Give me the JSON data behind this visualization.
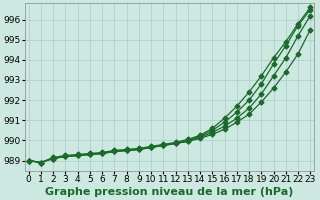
{
  "title": "Graphe pression niveau de la mer (hPa)",
  "xlabel": "Graphe pression niveau de la mer (hPa)",
  "ylabel": "",
  "background_color": "#cce8e0",
  "grid_color": "#aacccc",
  "line_color": "#1a6b2a",
  "ylim": [
    988.5,
    996.8
  ],
  "xlim": [
    -0.3,
    23.3
  ],
  "yticks": [
    989,
    990,
    991,
    992,
    993,
    994,
    995,
    996
  ],
  "xticks": [
    0,
    1,
    2,
    3,
    4,
    5,
    6,
    7,
    8,
    9,
    10,
    11,
    12,
    13,
    14,
    15,
    16,
    17,
    18,
    19,
    20,
    21,
    22,
    23
  ],
  "series": [
    [
      989.0,
      988.9,
      989.1,
      989.2,
      989.25,
      989.3,
      989.35,
      989.45,
      989.5,
      989.55,
      989.65,
      989.75,
      989.85,
      989.95,
      990.1,
      990.3,
      990.55,
      990.9,
      991.3,
      991.9,
      992.6,
      993.4,
      994.3,
      995.5
    ],
    [
      989.0,
      988.9,
      989.1,
      989.2,
      989.25,
      989.3,
      989.35,
      989.45,
      989.5,
      989.55,
      989.65,
      989.75,
      989.85,
      989.95,
      990.15,
      990.4,
      990.7,
      991.1,
      991.6,
      992.3,
      993.2,
      994.1,
      995.2,
      996.2
    ],
    [
      989.0,
      988.9,
      989.1,
      989.2,
      989.25,
      989.3,
      989.35,
      989.45,
      989.5,
      989.55,
      989.65,
      989.75,
      989.85,
      990.0,
      990.2,
      990.5,
      990.9,
      991.4,
      992.0,
      992.8,
      993.8,
      994.7,
      995.7,
      996.5
    ],
    [
      989.0,
      988.9,
      989.15,
      989.25,
      989.3,
      989.35,
      989.4,
      989.5,
      989.55,
      989.6,
      989.7,
      989.8,
      989.9,
      990.05,
      990.25,
      990.6,
      991.1,
      991.7,
      992.4,
      993.2,
      994.1,
      994.9,
      995.8,
      996.6
    ]
  ],
  "marker": "D",
  "marker_size": 2.5,
  "line_width": 0.9,
  "title_fontsize": 8,
  "tick_fontsize": 6.5
}
